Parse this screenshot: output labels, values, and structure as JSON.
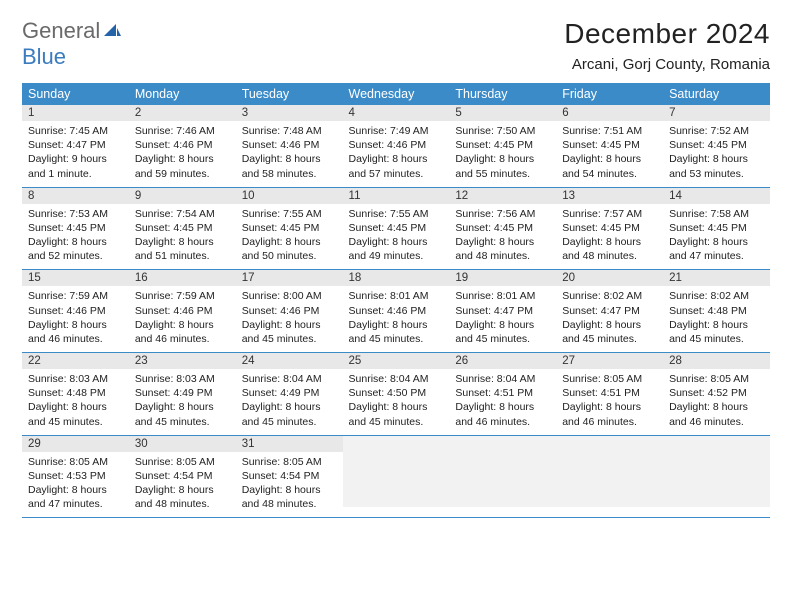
{
  "logo": {
    "text1": "General",
    "text2": "Blue"
  },
  "title": "December 2024",
  "location": "Arcani, Gorj County, Romania",
  "colors": {
    "header_bg": "#3b8bc8",
    "header_text": "#ffffff",
    "daynum_bg": "#e8e8e8",
    "row_divider": "#3b8bc8",
    "logo_gray": "#6a6a6a",
    "logo_blue": "#3b7bbf"
  },
  "day_headers": [
    "Sunday",
    "Monday",
    "Tuesday",
    "Wednesday",
    "Thursday",
    "Friday",
    "Saturday"
  ],
  "weeks": [
    [
      {
        "n": "1",
        "sr": "7:45 AM",
        "ss": "4:47 PM",
        "dl": "9 hours and 1 minute."
      },
      {
        "n": "2",
        "sr": "7:46 AM",
        "ss": "4:46 PM",
        "dl": "8 hours and 59 minutes."
      },
      {
        "n": "3",
        "sr": "7:48 AM",
        "ss": "4:46 PM",
        "dl": "8 hours and 58 minutes."
      },
      {
        "n": "4",
        "sr": "7:49 AM",
        "ss": "4:46 PM",
        "dl": "8 hours and 57 minutes."
      },
      {
        "n": "5",
        "sr": "7:50 AM",
        "ss": "4:45 PM",
        "dl": "8 hours and 55 minutes."
      },
      {
        "n": "6",
        "sr": "7:51 AM",
        "ss": "4:45 PM",
        "dl": "8 hours and 54 minutes."
      },
      {
        "n": "7",
        "sr": "7:52 AM",
        "ss": "4:45 PM",
        "dl": "8 hours and 53 minutes."
      }
    ],
    [
      {
        "n": "8",
        "sr": "7:53 AM",
        "ss": "4:45 PM",
        "dl": "8 hours and 52 minutes."
      },
      {
        "n": "9",
        "sr": "7:54 AM",
        "ss": "4:45 PM",
        "dl": "8 hours and 51 minutes."
      },
      {
        "n": "10",
        "sr": "7:55 AM",
        "ss": "4:45 PM",
        "dl": "8 hours and 50 minutes."
      },
      {
        "n": "11",
        "sr": "7:55 AM",
        "ss": "4:45 PM",
        "dl": "8 hours and 49 minutes."
      },
      {
        "n": "12",
        "sr": "7:56 AM",
        "ss": "4:45 PM",
        "dl": "8 hours and 48 minutes."
      },
      {
        "n": "13",
        "sr": "7:57 AM",
        "ss": "4:45 PM",
        "dl": "8 hours and 48 minutes."
      },
      {
        "n": "14",
        "sr": "7:58 AM",
        "ss": "4:45 PM",
        "dl": "8 hours and 47 minutes."
      }
    ],
    [
      {
        "n": "15",
        "sr": "7:59 AM",
        "ss": "4:46 PM",
        "dl": "8 hours and 46 minutes."
      },
      {
        "n": "16",
        "sr": "7:59 AM",
        "ss": "4:46 PM",
        "dl": "8 hours and 46 minutes."
      },
      {
        "n": "17",
        "sr": "8:00 AM",
        "ss": "4:46 PM",
        "dl": "8 hours and 45 minutes."
      },
      {
        "n": "18",
        "sr": "8:01 AM",
        "ss": "4:46 PM",
        "dl": "8 hours and 45 minutes."
      },
      {
        "n": "19",
        "sr": "8:01 AM",
        "ss": "4:47 PM",
        "dl": "8 hours and 45 minutes."
      },
      {
        "n": "20",
        "sr": "8:02 AM",
        "ss": "4:47 PM",
        "dl": "8 hours and 45 minutes."
      },
      {
        "n": "21",
        "sr": "8:02 AM",
        "ss": "4:48 PM",
        "dl": "8 hours and 45 minutes."
      }
    ],
    [
      {
        "n": "22",
        "sr": "8:03 AM",
        "ss": "4:48 PM",
        "dl": "8 hours and 45 minutes."
      },
      {
        "n": "23",
        "sr": "8:03 AM",
        "ss": "4:49 PM",
        "dl": "8 hours and 45 minutes."
      },
      {
        "n": "24",
        "sr": "8:04 AM",
        "ss": "4:49 PM",
        "dl": "8 hours and 45 minutes."
      },
      {
        "n": "25",
        "sr": "8:04 AM",
        "ss": "4:50 PM",
        "dl": "8 hours and 45 minutes."
      },
      {
        "n": "26",
        "sr": "8:04 AM",
        "ss": "4:51 PM",
        "dl": "8 hours and 46 minutes."
      },
      {
        "n": "27",
        "sr": "8:05 AM",
        "ss": "4:51 PM",
        "dl": "8 hours and 46 minutes."
      },
      {
        "n": "28",
        "sr": "8:05 AM",
        "ss": "4:52 PM",
        "dl": "8 hours and 46 minutes."
      }
    ],
    [
      {
        "n": "29",
        "sr": "8:05 AM",
        "ss": "4:53 PM",
        "dl": "8 hours and 47 minutes."
      },
      {
        "n": "30",
        "sr": "8:05 AM",
        "ss": "4:54 PM",
        "dl": "8 hours and 48 minutes."
      },
      {
        "n": "31",
        "sr": "8:05 AM",
        "ss": "4:54 PM",
        "dl": "8 hours and 48 minutes."
      },
      null,
      null,
      null,
      null
    ]
  ],
  "labels": {
    "sunrise": "Sunrise:",
    "sunset": "Sunset:",
    "daylight": "Daylight:"
  }
}
